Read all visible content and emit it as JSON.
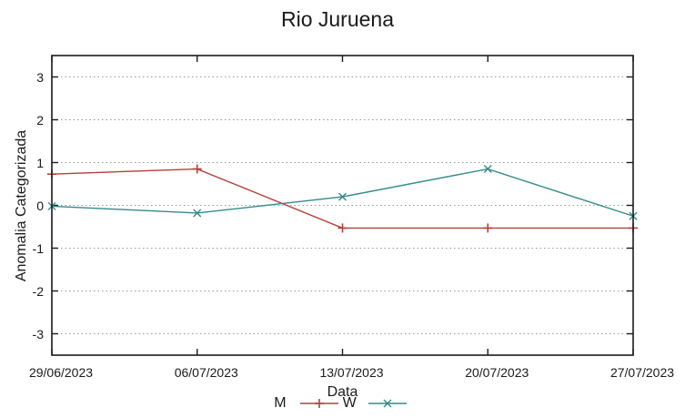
{
  "chart_data": {
    "type": "line",
    "title": "Rio Juruena",
    "xlabel": "Data",
    "ylabel": "Anomalia Categorizada",
    "categories": [
      "29/06/2023",
      "06/07/2023",
      "13/07/2023",
      "20/07/2023",
      "27/07/2023"
    ],
    "yticks": [
      "3",
      "2",
      "1",
      "0",
      "-1",
      "-2",
      "-3"
    ],
    "ylim": [
      -3.5,
      3.5
    ],
    "grid": "horizontal-dotted",
    "legend_position": "bottom-center",
    "colors": {
      "frame": "#1a1a1a",
      "gridline": "#999999"
    },
    "series": [
      {
        "name": "M",
        "color": "#b5403b",
        "marker": "plus",
        "values": [
          0.73,
          0.85,
          -0.53,
          -0.53,
          -0.53
        ]
      },
      {
        "name": "W",
        "color": "#348b8b",
        "marker": "cross",
        "values": [
          -0.02,
          -0.18,
          0.2,
          0.85,
          -0.25
        ]
      }
    ]
  }
}
